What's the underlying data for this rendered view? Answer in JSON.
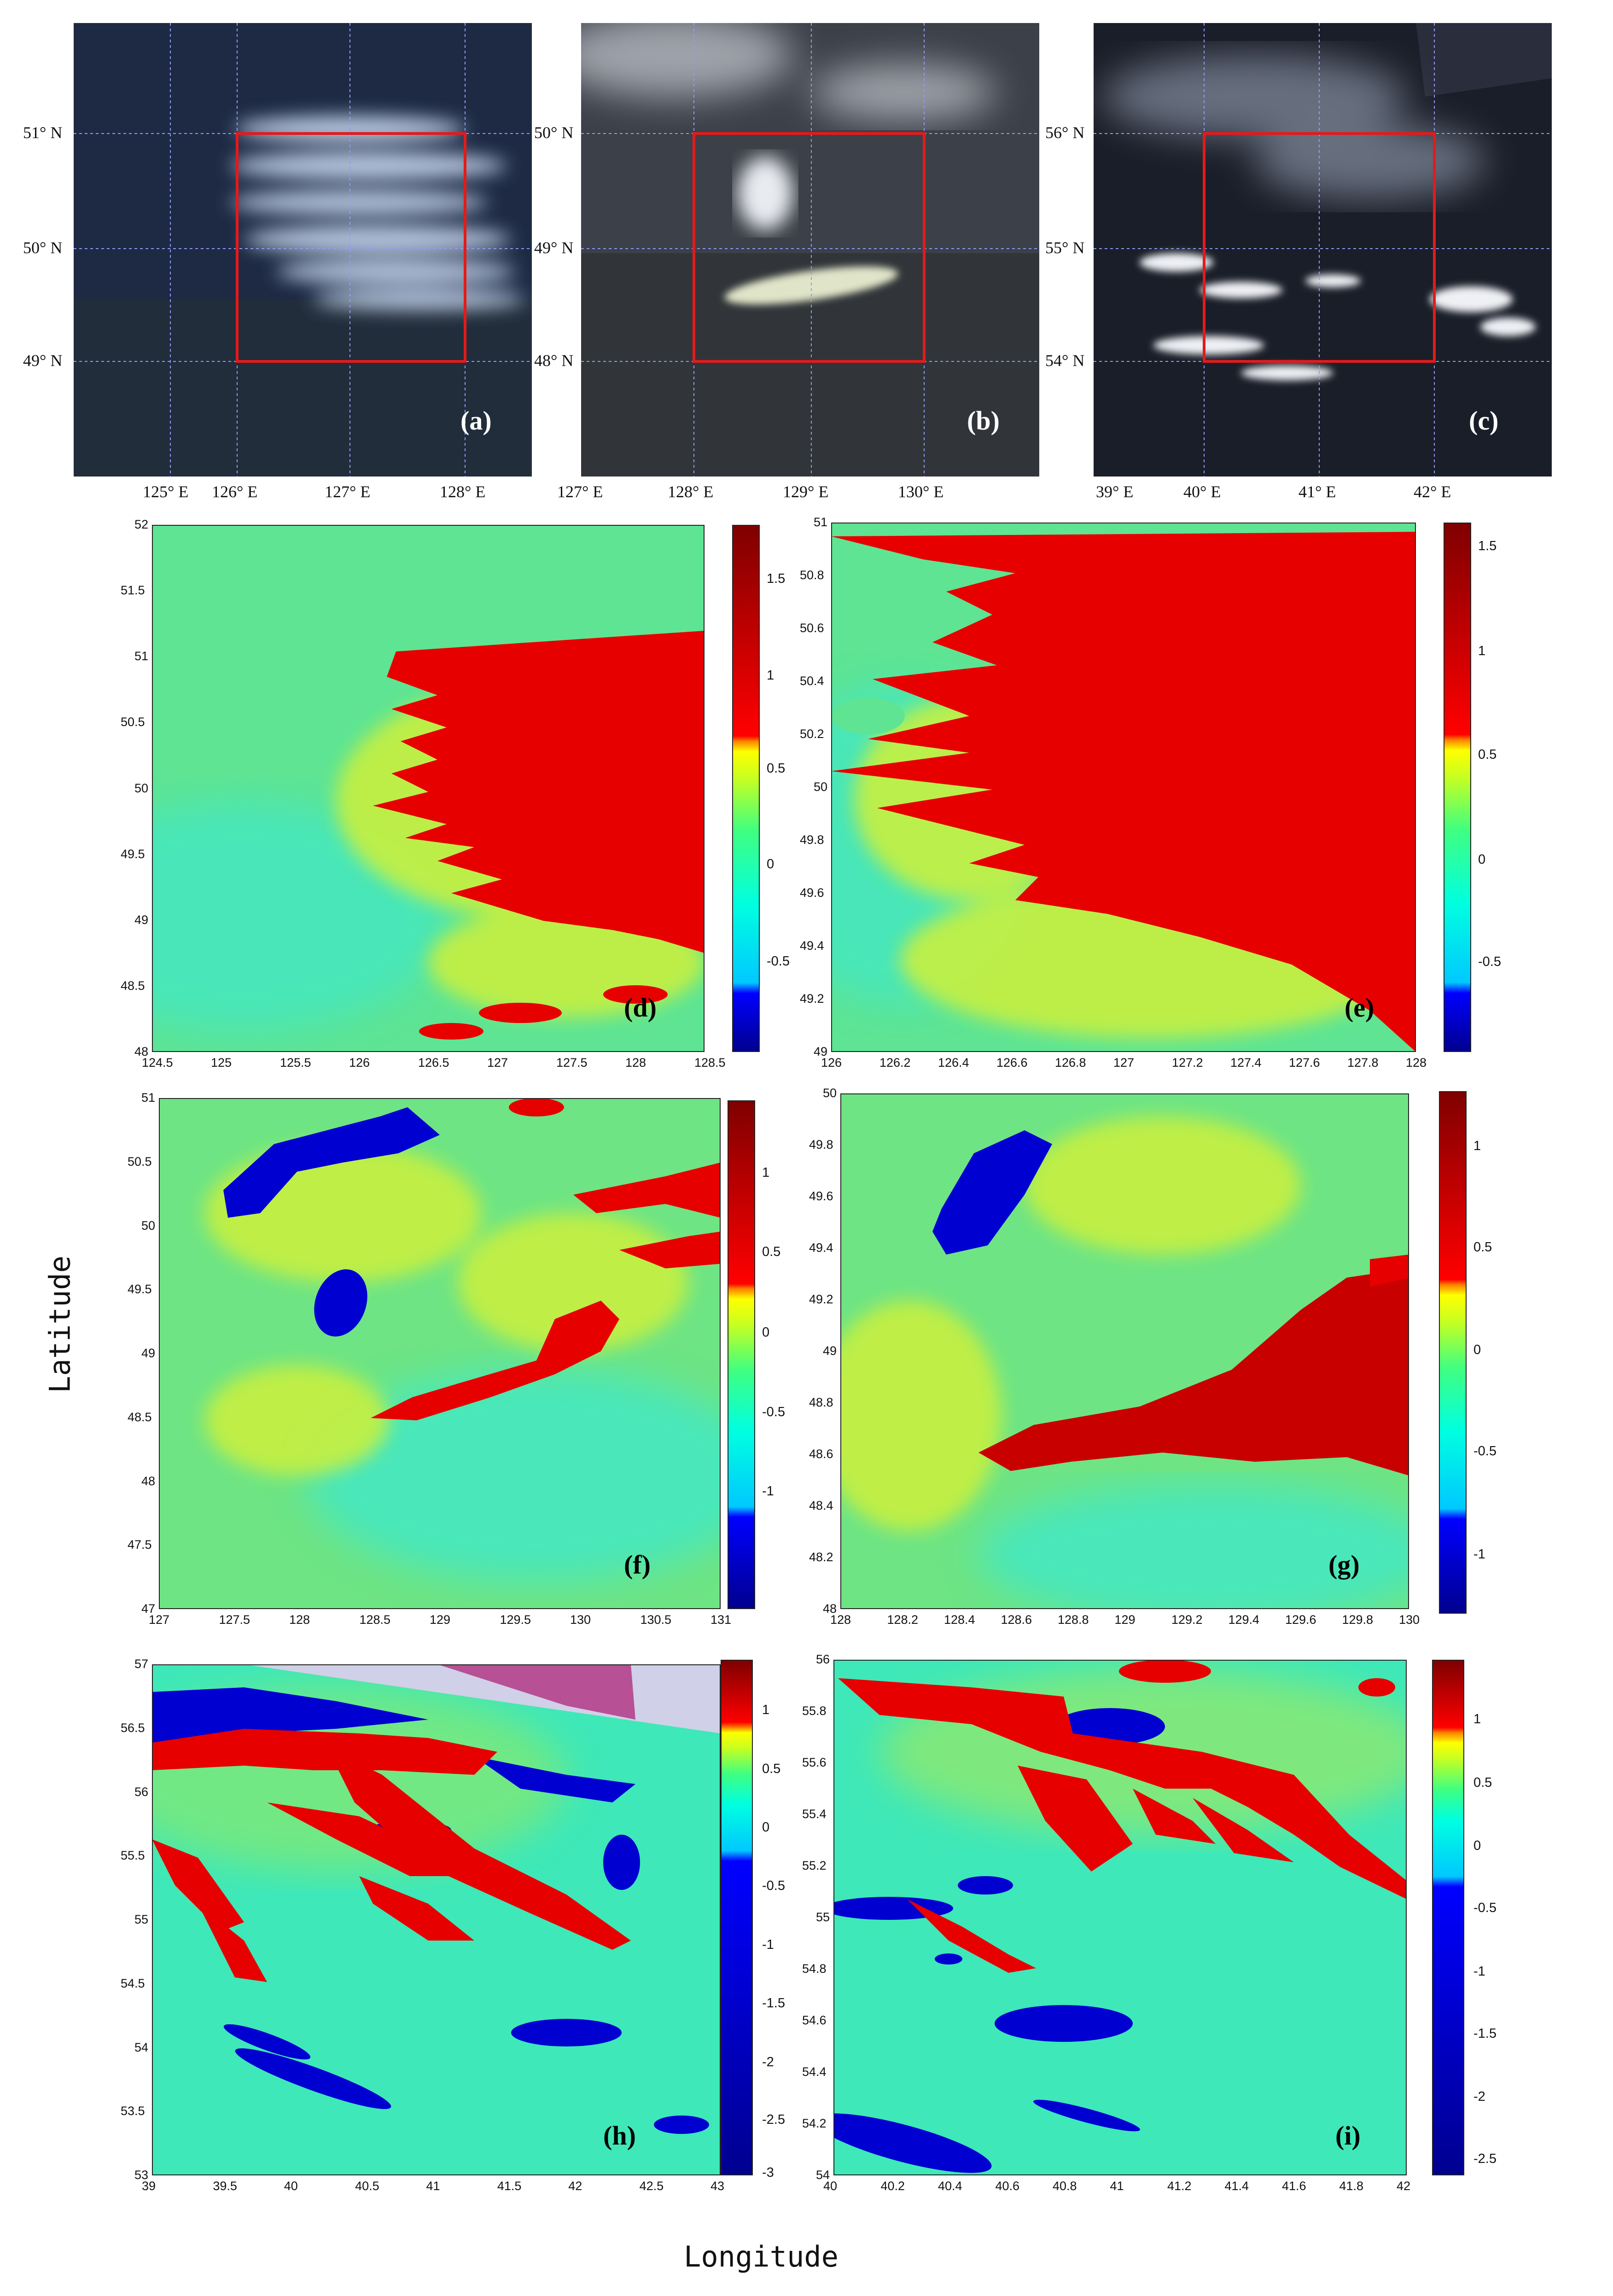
{
  "satellite_panels": [
    {
      "id": "a",
      "label": "(a)",
      "lat_labels": [
        "51° N",
        "50° N",
        "49° N"
      ],
      "lon_labels": [
        "125° E",
        "126° E",
        "127° E",
        "128° E"
      ]
    },
    {
      "id": "b",
      "label": "(b)",
      "lat_labels": [
        "50° N",
        "49° N",
        "48° N"
      ],
      "lon_labels": [
        "127° E",
        "128° E",
        "129° E",
        "130° E"
      ]
    },
    {
      "id": "c",
      "label": "(c)",
      "lat_labels": [
        "56° N",
        "55° N",
        "54° N"
      ],
      "lon_labels": [
        "39° E",
        "40° E",
        "41° E",
        "42° E"
      ]
    }
  ],
  "map_panels": [
    {
      "id": "d",
      "label": "(d)",
      "x_ticks": [
        "124.5",
        "125",
        "125.5",
        "126",
        "126.5",
        "127",
        "127.5",
        "128",
        "128.5"
      ],
      "y_ticks": [
        "52",
        "51.5",
        "51",
        "50.5",
        "50",
        "49.5",
        "49",
        "48.5",
        "48"
      ],
      "cbar_ticks": [
        "1.5",
        "1",
        "0.5",
        "0",
        "-0.5"
      ]
    },
    {
      "id": "e",
      "label": "(e)",
      "x_ticks": [
        "126",
        "126.2",
        "126.4",
        "126.6",
        "126.8",
        "127",
        "127.2",
        "127.4",
        "127.6",
        "127.8",
        "128"
      ],
      "y_ticks": [
        "51",
        "50.8",
        "50.6",
        "50.4",
        "50.2",
        "50",
        "49.8",
        "49.6",
        "49.4",
        "49.2",
        "49"
      ],
      "cbar_ticks": [
        "1.5",
        "1",
        "0.5",
        "0",
        "-0.5"
      ]
    },
    {
      "id": "f",
      "label": "(f)",
      "x_ticks": [
        "127",
        "127.5",
        "128",
        "128.5",
        "129",
        "129.5",
        "130",
        "130.5",
        "131"
      ],
      "y_ticks": [
        "51",
        "50.5",
        "50",
        "49.5",
        "49",
        "48.5",
        "48",
        "47.5",
        "47"
      ],
      "cbar_ticks": [
        "1",
        "0.5",
        "0",
        "-0.5",
        "-1"
      ]
    },
    {
      "id": "g",
      "label": "(g)",
      "x_ticks": [
        "128",
        "128.2",
        "128.4",
        "128.6",
        "128.8",
        "129",
        "129.2",
        "129.4",
        "129.6",
        "129.8",
        "130"
      ],
      "y_ticks": [
        "50",
        "49.8",
        "49.6",
        "49.4",
        "49.2",
        "49",
        "48.8",
        "48.6",
        "48.4",
        "48.2",
        "48"
      ],
      "cbar_ticks": [
        "1",
        "0.5",
        "0",
        "-0.5",
        "-1"
      ]
    },
    {
      "id": "h",
      "label": "(h)",
      "x_ticks": [
        "39",
        "39.5",
        "40",
        "40.5",
        "41",
        "41.5",
        "42",
        "42.5",
        "43"
      ],
      "y_ticks": [
        "57",
        "56.5",
        "56",
        "55.5",
        "55",
        "54.5",
        "54",
        "53.5",
        "53"
      ],
      "cbar_ticks": [
        "1",
        "0.5",
        "0",
        "-0.5",
        "-1",
        "-1.5",
        "-2",
        "-2.5",
        "-3"
      ]
    },
    {
      "id": "i",
      "label": "(i)",
      "x_ticks": [
        "40",
        "40.2",
        "40.4",
        "40.6",
        "40.8",
        "41",
        "41.2",
        "41.4",
        "41.6",
        "41.8",
        "42"
      ],
      "y_ticks": [
        "56",
        "55.8",
        "55.6",
        "55.4",
        "55.2",
        "55",
        "54.8",
        "54.6",
        "54.4",
        "54.2",
        "54"
      ],
      "cbar_ticks": [
        "1",
        "0.5",
        "0",
        "-0.5",
        "-1",
        "-1.5",
        "-2",
        "-2.5"
      ]
    }
  ],
  "axis_titles": {
    "x": "Longitude",
    "y": "Latitude"
  },
  "colors": {
    "red_box": "#e31a1c",
    "grid": "#8f9cff",
    "plume_red": "#e00000",
    "water_blue": "#0000cc",
    "base_green": "#58e08c",
    "base_cyan": "#3ee8c8"
  }
}
